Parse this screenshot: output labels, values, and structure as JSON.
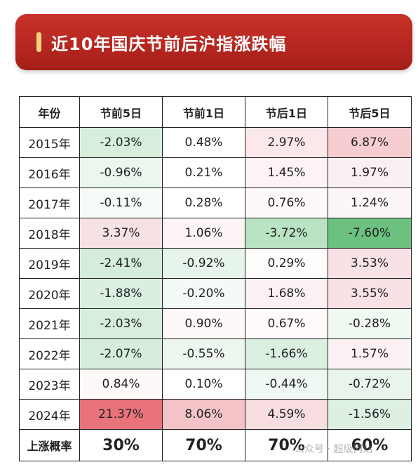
{
  "banner": {
    "title": "近10年国庆节前后沪指涨跌幅"
  },
  "table": {
    "headers": [
      "年份",
      "节前5日",
      "节前1日",
      "节后1日",
      "节后5日"
    ],
    "rows": [
      {
        "year": "2015年",
        "cells": [
          {
            "text": "-2.03%",
            "bg": "#d7eedd"
          },
          {
            "text": "0.48%",
            "bg": "#ffffff"
          },
          {
            "text": "2.97%",
            "bg": "#fbe8ea"
          },
          {
            "text": "6.87%",
            "bg": "#f7cdd1"
          }
        ]
      },
      {
        "year": "2016年",
        "cells": [
          {
            "text": "-0.96%",
            "bg": "#eaf6ee"
          },
          {
            "text": "0.21%",
            "bg": "#ffffff"
          },
          {
            "text": "1.45%",
            "bg": "#fdf3f4"
          },
          {
            "text": "1.97%",
            "bg": "#fbf0f1"
          }
        ]
      },
      {
        "year": "2017年",
        "cells": [
          {
            "text": "-0.11%",
            "bg": "#f6fbf7"
          },
          {
            "text": "0.28%",
            "bg": "#ffffff"
          },
          {
            "text": "0.76%",
            "bg": "#fef9f9"
          },
          {
            "text": "1.24%",
            "bg": "#fdf6f6"
          }
        ]
      },
      {
        "year": "2018年",
        "cells": [
          {
            "text": "3.37%",
            "bg": "#f8e1e4"
          },
          {
            "text": "1.06%",
            "bg": "#fdf4f5"
          },
          {
            "text": "-3.72%",
            "bg": "#b9e3c2"
          },
          {
            "text": "-7.60%",
            "bg": "#6cc080"
          }
        ]
      },
      {
        "year": "2019年",
        "cells": [
          {
            "text": "-2.41%",
            "bg": "#d4ecd9"
          },
          {
            "text": "-0.92%",
            "bg": "#e6f4ea"
          },
          {
            "text": "0.29%",
            "bg": "#fffcfc"
          },
          {
            "text": "3.53%",
            "bg": "#f9e2e5"
          }
        ]
      },
      {
        "year": "2020年",
        "cells": [
          {
            "text": "-1.88%",
            "bg": "#dbefe0"
          },
          {
            "text": "-0.20%",
            "bg": "#f4faf5"
          },
          {
            "text": "1.68%",
            "bg": "#fcf1f2"
          },
          {
            "text": "3.55%",
            "bg": "#f9e2e5"
          }
        ]
      },
      {
        "year": "2021年",
        "cells": [
          {
            "text": "-2.03%",
            "bg": "#d7eedd"
          },
          {
            "text": "0.90%",
            "bg": "#fef8f8"
          },
          {
            "text": "0.67%",
            "bg": "#fffafa"
          },
          {
            "text": "-0.28%",
            "bg": "#f0f8f2"
          }
        ]
      },
      {
        "year": "2022年",
        "cells": [
          {
            "text": "-2.07%",
            "bg": "#d6eddc"
          },
          {
            "text": "-0.55%",
            "bg": "#edf7f0"
          },
          {
            "text": "-1.66%",
            "bg": "#dcf0e1"
          },
          {
            "text": "1.57%",
            "bg": "#fcf2f3"
          }
        ]
      },
      {
        "year": "2023年",
        "cells": [
          {
            "text": "0.84%",
            "bg": "#fef9f9"
          },
          {
            "text": "0.10%",
            "bg": "#ffffff"
          },
          {
            "text": "-0.44%",
            "bg": "#eef7f1"
          },
          {
            "text": "-0.72%",
            "bg": "#e9f5ec"
          }
        ]
      },
      {
        "year": "2024年",
        "cells": [
          {
            "text": "21.37%",
            "bg": "#e8737b"
          },
          {
            "text": "8.06%",
            "bg": "#f4c3c8"
          },
          {
            "text": "4.59%",
            "bg": "#f8dde0"
          },
          {
            "text": "-1.56%",
            "bg": "#ddf0e2"
          }
        ]
      }
    ],
    "footer": {
      "label": "上涨概率",
      "rates": [
        "30%",
        "70%",
        "70%",
        "60%"
      ]
    }
  },
  "watermark": {
    "text": "公众号 · 超级网站"
  }
}
